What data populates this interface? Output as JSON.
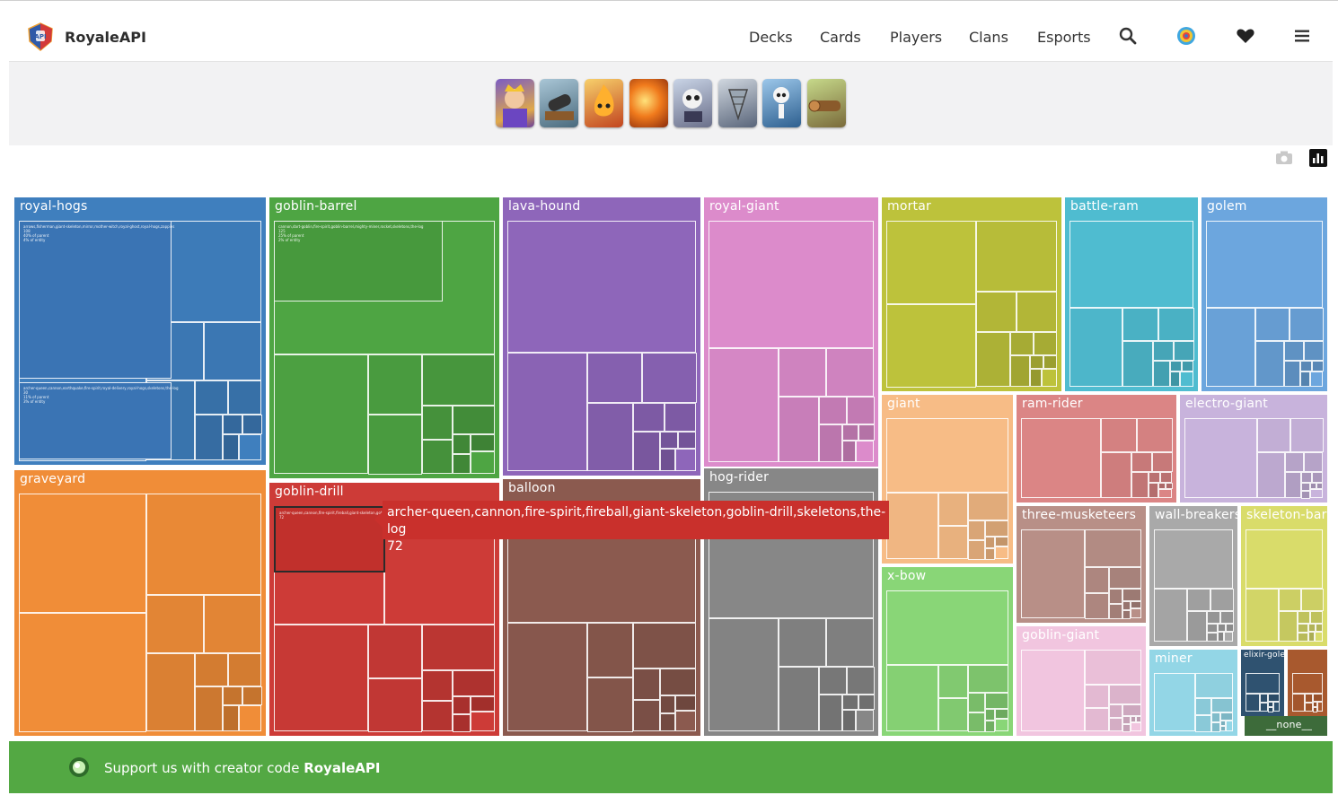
{
  "brand": {
    "name": "RoyaleAPI"
  },
  "nav": {
    "links": [
      "Decks",
      "Cards",
      "Players",
      "Clans",
      "Esports"
    ],
    "icons": [
      "search-icon",
      "color-wheel-icon",
      "heart-icon",
      "menu-icon"
    ]
  },
  "deck_cards": [
    "archer-queen",
    "cannon",
    "fire-spirit",
    "fireball",
    "giant-skeleton",
    "goblin-drill",
    "skeletons",
    "the-log"
  ],
  "tools": [
    "camera-icon",
    "chart-icon"
  ],
  "treemap": {
    "groups": [
      {
        "label": "royal-hogs",
        "color": "#3f7fbe"
      },
      {
        "label": "goblin-barrel",
        "color": "#4ea543"
      },
      {
        "label": "lava-hound",
        "color": "#8e66ba"
      },
      {
        "label": "royal-giant",
        "color": "#dc8bcb"
      },
      {
        "label": "mortar",
        "color": "#bdc23b"
      },
      {
        "label": "battle-ram",
        "color": "#4fbcd0"
      },
      {
        "label": "golem",
        "color": "#6ca6de"
      },
      {
        "label": "graveyard",
        "color": "#f08d38"
      },
      {
        "label": "goblin-drill",
        "color": "#cd3b37"
      },
      {
        "label": "balloon",
        "color": "#8b5a4f"
      },
      {
        "label": "hog-rider",
        "color": "#878787"
      },
      {
        "label": "giant",
        "color": "#f7bc86"
      },
      {
        "label": "ram-rider",
        "color": "#db8585"
      },
      {
        "label": "electro-giant",
        "color": "#c8b3dc"
      },
      {
        "label": "three-musketeers",
        "color": "#b88f87"
      },
      {
        "label": "wall-breakers",
        "color": "#a9a9a9"
      },
      {
        "label": "skeleton-barrel",
        "color": "#d9dc6a"
      },
      {
        "label": "x-bow",
        "color": "#89d677"
      },
      {
        "label": "goblin-giant",
        "color": "#f1c5df"
      },
      {
        "label": "miner",
        "color": "#93d6e6"
      },
      {
        "label": "elixir-golem",
        "color": "#2f5270"
      },
      {
        "label": "",
        "color": "#a8592e"
      },
      {
        "label": "__none__",
        "color": "#3d6b3a"
      }
    ],
    "cell_text": {
      "royal_hogs_top": "arrows,fisherman,giant-skeleton,mirror,mother-witch,royal-ghost,royal-hogs,zappies\n108\n40% of parent\n4% of entity",
      "royal_hogs_bottom": "archer-queen,cannon,earthquake,fire-spirit,royal-delivery,royal-hogs,skeletons,the-log\n30\n11% of parent\n3% of entity",
      "goblin_barrel_top": "cannon,dart-goblin,fire-spirit,goblin-barrel,mighty-miner,rocket,skeletons,the-log\n125\n25% of parent\n2% of entity"
    }
  },
  "tooltip": {
    "deck": "archer-queen,cannon,fire-spirit,fireball,giant-skeleton,goblin-drill,skeletons,the-log",
    "value": "72"
  },
  "footer": {
    "text": "Support us with creator code ",
    "code": "RoyaleAPI"
  }
}
